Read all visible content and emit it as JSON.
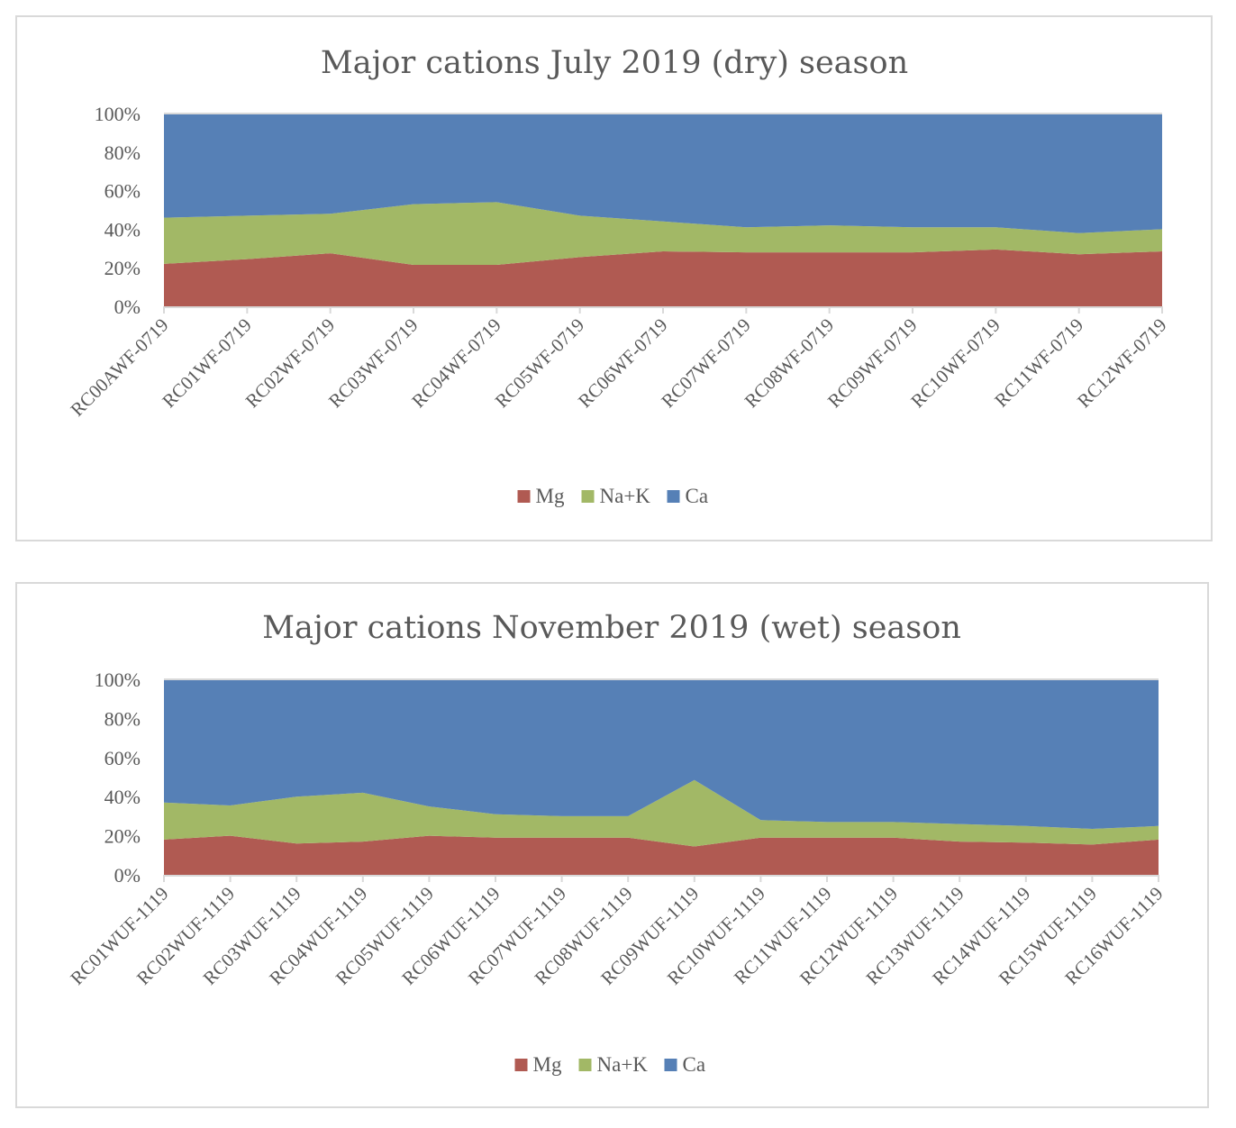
{
  "colors": {
    "Mg": "#b05a52",
    "Na+K": "#a2b866",
    "Ca": "#5680b6",
    "axis": "#d9d9d9",
    "text": "#595959"
  },
  "chart_data": [
    {
      "type": "area",
      "stacked": "percent",
      "title": "Major cations July 2019 (dry) season",
      "xlabel": "",
      "ylabel": "",
      "ylim": [
        0,
        100
      ],
      "yticks": [
        "0%",
        "20%",
        "40%",
        "60%",
        "80%",
        "100%"
      ],
      "grid": false,
      "legend_position": "bottom",
      "categories": [
        "RC00AWF-0719",
        "RC01WF-0719",
        "RC02WF-0719",
        "RC03WF-0719",
        "RC04WF-0719",
        "RC05WF-0719",
        "RC06WF-0719",
        "RC07WF-0719",
        "RC08WF-0719",
        "RC09WF-0719",
        "RC10WF-0719",
        "RC11WF-0719",
        "RC12WF-0719"
      ],
      "series": [
        {
          "name": "Mg",
          "values": [
            22,
            24.5,
            27.5,
            21.5,
            21.5,
            25.5,
            28.5,
            28,
            28,
            28,
            29.5,
            27,
            28.5
          ]
        },
        {
          "name": "Na+K",
          "values": [
            24,
            22.5,
            20.5,
            31.5,
            32.5,
            21.5,
            15.5,
            13,
            14,
            13,
            11.5,
            11,
            11.5
          ]
        },
        {
          "name": "Ca",
          "values": [
            54,
            53,
            52,
            47,
            46,
            53,
            56,
            59,
            58,
            59,
            59,
            62,
            60
          ]
        }
      ]
    },
    {
      "type": "area",
      "stacked": "percent",
      "title": "Major cations November 2019 (wet) season",
      "xlabel": "",
      "ylabel": "",
      "ylim": [
        0,
        100
      ],
      "yticks": [
        "0%",
        "20%",
        "40%",
        "60%",
        "80%",
        "100%"
      ],
      "grid": false,
      "legend_position": "bottom",
      "categories": [
        "RC01WUF-1119",
        "RC02WUF-1119",
        "RC03WUF-1119",
        "RC04WUF-1119",
        "RC05WUF-1119",
        "RC06WUF-1119",
        "RC07WUF-1119",
        "RC08WUF-1119",
        "RC09WUF-1119",
        "RC10WUF-1119",
        "RC11WUF-1119",
        "RC12WUF-1119",
        "RC13WUF-1119",
        "RC14WUF-1119",
        "RC15WUF-1119",
        "RC16WUF-1119"
      ],
      "series": [
        {
          "name": "Mg",
          "values": [
            18,
            20,
            16,
            17,
            20,
            19,
            19,
            19,
            14.5,
            19,
            19,
            19,
            17,
            16.5,
            15.5,
            18
          ]
        },
        {
          "name": "Na+K",
          "values": [
            19,
            15.5,
            24,
            25,
            15,
            12,
            11,
            11,
            34,
            9,
            8,
            8,
            9,
            8.5,
            8,
            7
          ]
        },
        {
          "name": "Ca",
          "values": [
            63,
            64.5,
            60,
            58,
            65,
            69,
            70,
            70,
            51.5,
            72,
            73,
            73,
            74,
            75,
            76.5,
            75
          ]
        }
      ]
    }
  ]
}
